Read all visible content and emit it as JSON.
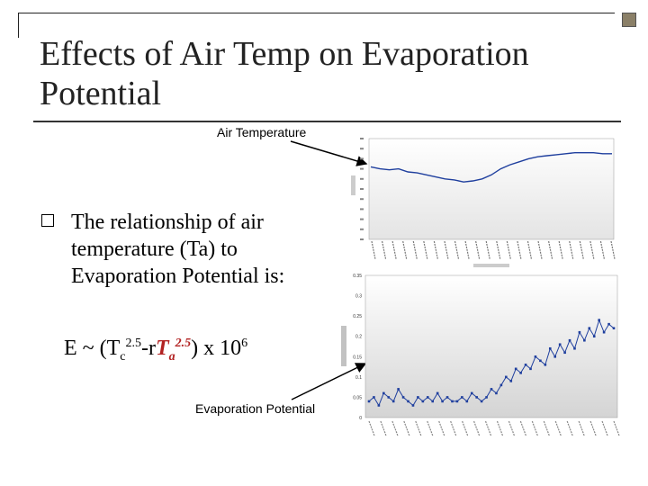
{
  "slide": {
    "title": "Effects of Air Temp on Evaporation Potential",
    "callouts": {
      "air_temperature": "Air Temperature",
      "evaporation_potential": "Evaporation Potential"
    },
    "bullet": "The relationship of air temperature (Ta) to Evaporation Potential is:",
    "formula": {
      "lead": "E ~ (T",
      "c_sub": "c",
      "c_exp": "2.5",
      "minus_r": "-r",
      "ta_base": "T",
      "a_sub": "a",
      "a_exp": "2.5",
      "tail": ") x 10",
      "ten_exp": "6"
    },
    "colors": {
      "series": "#1f3f9e",
      "plot_bg_top": "#ffffff",
      "plot_bg_bottom": "#d8d8d8",
      "formula_highlight": "#b22222"
    }
  },
  "chart_data": [
    {
      "type": "line",
      "name": "air-temperature-chart",
      "x_tick_count": 24,
      "y_tick_count": 11,
      "series": [
        {
          "values": [
            0.72,
            0.7,
            0.69,
            0.7,
            0.67,
            0.66,
            0.64,
            0.62,
            0.6,
            0.59,
            0.57,
            0.58,
            0.6,
            0.64,
            0.7,
            0.74,
            0.77,
            0.8,
            0.82,
            0.83,
            0.84,
            0.85,
            0.86,
            0.86,
            0.86,
            0.85,
            0.85
          ]
        }
      ],
      "ylim": [
        0,
        1
      ]
    },
    {
      "type": "line",
      "name": "evaporation-potential-chart",
      "yticks": [
        "0.35",
        "0.3",
        "0.25",
        "0.2",
        "0.15",
        "0.1",
        "0.05",
        "0"
      ],
      "ylim": [
        0,
        0.35
      ],
      "series": [
        {
          "values": [
            0.04,
            0.05,
            0.03,
            0.06,
            0.05,
            0.04,
            0.07,
            0.05,
            0.04,
            0.03,
            0.05,
            0.04,
            0.05,
            0.04,
            0.06,
            0.04,
            0.05,
            0.04,
            0.04,
            0.05,
            0.04,
            0.06,
            0.05,
            0.04,
            0.05,
            0.07,
            0.06,
            0.08,
            0.1,
            0.09,
            0.12,
            0.11,
            0.13,
            0.12,
            0.15,
            0.14,
            0.13,
            0.17,
            0.15,
            0.18,
            0.16,
            0.19,
            0.17,
            0.21,
            0.19,
            0.22,
            0.2,
            0.24,
            0.21,
            0.23,
            0.22
          ]
        }
      ]
    }
  ]
}
